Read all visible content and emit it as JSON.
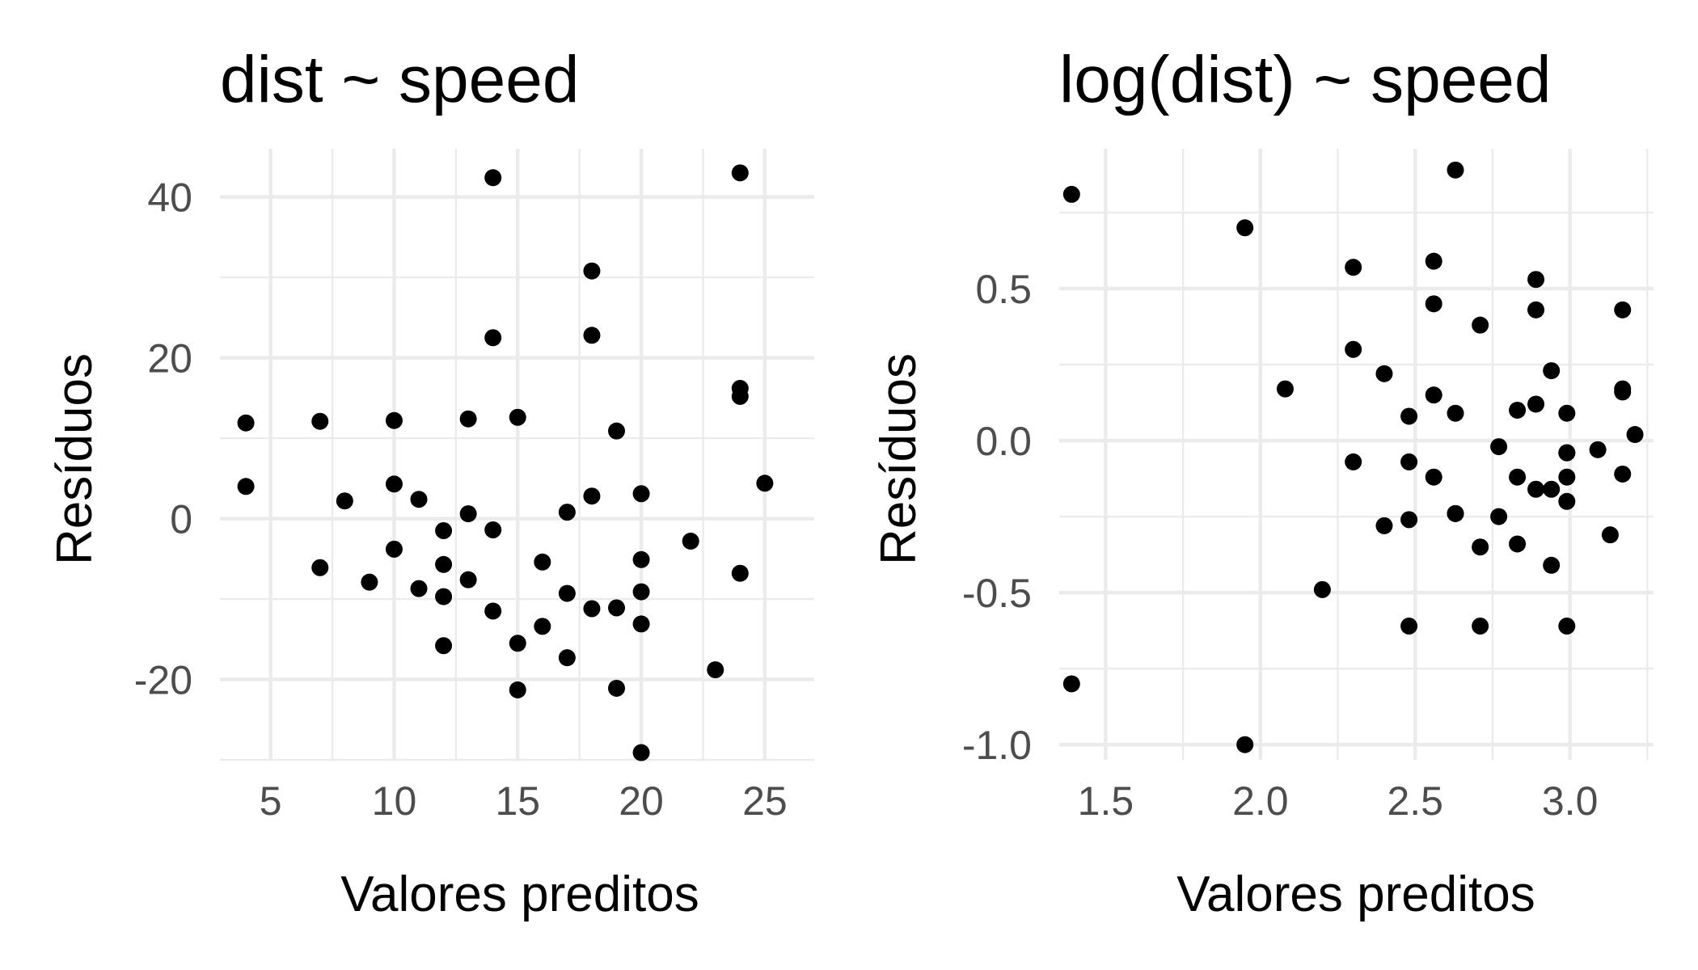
{
  "chart_data": [
    {
      "type": "scatter",
      "title": "dist ~ speed",
      "xlabel": "Valores preditos",
      "ylabel": "Resíduos",
      "xlim": [
        2.95,
        27.0
      ],
      "ylim": [
        -30.0,
        46.0
      ],
      "x_ticks": [
        5,
        10,
        15,
        20,
        25
      ],
      "x_tick_labels": [
        "5",
        "10",
        "15",
        "20",
        "25"
      ],
      "y_ticks": [
        -20,
        0,
        20,
        40
      ],
      "y_tick_labels": [
        "-20",
        "0",
        "20",
        "40"
      ],
      "grid": true,
      "x": [
        4,
        4,
        7,
        7,
        8,
        9,
        10,
        10,
        10,
        11,
        11,
        12,
        12,
        12,
        12,
        13,
        13,
        13,
        14,
        14,
        14,
        14,
        15,
        15,
        15,
        16,
        16,
        17,
        17,
        17,
        18,
        18,
        18,
        18,
        19,
        19,
        19,
        20,
        20,
        20,
        20,
        20,
        22,
        23,
        24,
        24,
        24,
        24,
        25
      ],
      "y": [
        11.9,
        4.0,
        12.1,
        -6.1,
        2.2,
        -7.9,
        12.2,
        4.3,
        -3.8,
        -8.7,
        2.4,
        -15.8,
        -9.7,
        -5.7,
        -1.5,
        12.4,
        0.6,
        -7.6,
        42.4,
        22.5,
        -11.5,
        -1.4,
        12.6,
        -15.5,
        -21.3,
        -5.4,
        -13.4,
        -17.3,
        -9.3,
        0.8,
        30.8,
        22.8,
        2.8,
        -11.2,
        10.9,
        -11.1,
        -21.1,
        3.1,
        -5.1,
        -9.1,
        -13.1,
        -29.1,
        -2.8,
        -18.8,
        43.0,
        16.2,
        15.2,
        -6.8,
        4.4
      ]
    },
    {
      "type": "scatter",
      "title": "log(dist) ~ speed",
      "xlabel": "Valores preditos",
      "ylabel": "Resíduos",
      "xlim": [
        1.35,
        3.27
      ],
      "ylim": [
        -1.05,
        0.96
      ],
      "x_ticks": [
        1.5,
        2.0,
        2.5,
        3.0
      ],
      "x_tick_labels": [
        "1.5",
        "2.0",
        "2.5",
        "3.0"
      ],
      "y_ticks": [
        -1.0,
        -0.5,
        0.0,
        0.5
      ],
      "y_tick_labels": [
        "-1.0",
        "-0.5",
        "0.0",
        "0.5"
      ],
      "grid": true,
      "x": [
        1.39,
        1.39,
        1.95,
        1.95,
        2.08,
        2.2,
        2.3,
        2.3,
        2.3,
        2.4,
        2.4,
        2.48,
        2.48,
        2.48,
        2.48,
        2.56,
        2.56,
        2.56,
        2.56,
        2.63,
        2.63,
        2.63,
        2.63,
        2.71,
        2.71,
        2.71,
        2.77,
        2.77,
        2.83,
        2.83,
        2.83,
        2.89,
        2.89,
        2.89,
        2.89,
        2.94,
        2.94,
        2.94,
        2.99,
        2.99,
        2.99,
        2.99,
        2.99,
        2.99,
        3.09,
        3.13,
        3.17,
        3.17,
        3.17,
        3.17,
        3.21
      ],
      "y": [
        0.81,
        -0.8,
        0.7,
        -1.0,
        0.17,
        -0.49,
        0.57,
        0.3,
        -0.07,
        0.22,
        -0.28,
        0.08,
        -0.07,
        -0.26,
        -0.61,
        0.45,
        0.15,
        -0.12,
        0.59,
        0.89,
        0.09,
        -0.24,
        -0.24,
        0.38,
        -0.35,
        -0.61,
        -0.02,
        -0.25,
        0.1,
        -0.12,
        -0.34,
        0.53,
        0.43,
        0.12,
        -0.16,
        0.23,
        -0.16,
        -0.41,
        0.09,
        -0.04,
        -0.12,
        -0.2,
        -0.61,
        -0.04,
        -0.03,
        -0.31,
        0.43,
        0.17,
        0.16,
        -0.11,
        0.02
      ]
    }
  ]
}
